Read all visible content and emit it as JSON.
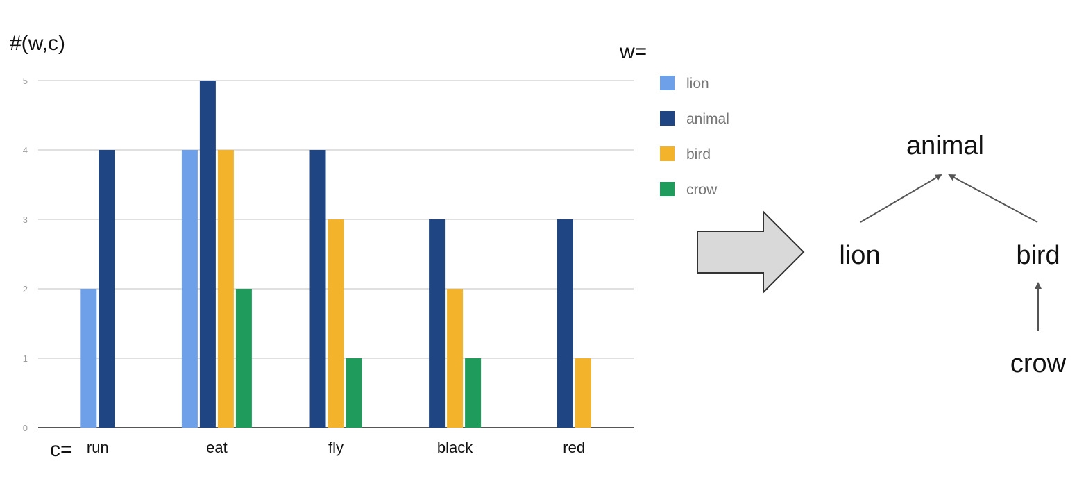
{
  "chart_data": {
    "type": "bar",
    "ylabel": "#(w,c)",
    "categories_label": "c=",
    "legend_title": "w=",
    "categories": [
      "run",
      "eat",
      "fly",
      "black",
      "red"
    ],
    "ylim": [
      0,
      5
    ],
    "yticks": [
      "0",
      "1",
      "2",
      "3",
      "4",
      "5"
    ],
    "grid": true,
    "legend": "right",
    "series": [
      {
        "name": "lion",
        "color": "#6ea0ea",
        "values": [
          2,
          4,
          0,
          0,
          0
        ]
      },
      {
        "name": "animal",
        "color": "#1f4583",
        "values": [
          4,
          5,
          4,
          3,
          3
        ]
      },
      {
        "name": "bird",
        "color": "#f3b32a",
        "values": [
          0,
          4,
          3,
          2,
          1
        ]
      },
      {
        "name": "crow",
        "color": "#1f9b5c",
        "values": [
          0,
          2,
          1,
          1,
          0
        ]
      }
    ]
  },
  "hierarchy": {
    "root": "animal",
    "left": "lion",
    "right": "bird",
    "child": "crow"
  }
}
